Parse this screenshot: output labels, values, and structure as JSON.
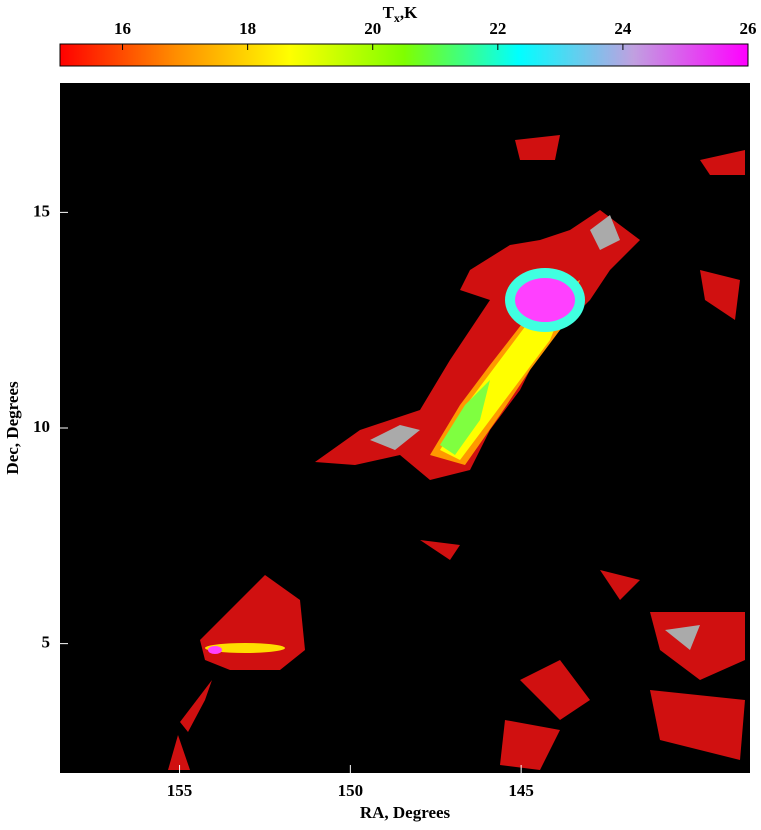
{
  "chart_data": {
    "type": "image",
    "x_label": "RA, Degrees",
    "y_label": "Dec, Degrees",
    "xlim": [
      158.5,
      138.3
    ],
    "ylim": [
      2.0,
      18.0
    ],
    "xticks": [
      155,
      150,
      145
    ],
    "yticks": [
      5,
      10,
      15
    ],
    "colorbar": {
      "label_base": "T",
      "label_sub": "x",
      "label_rest": ",K",
      "clim": [
        15,
        26
      ],
      "ticks": [
        16,
        18,
        20,
        22,
        24,
        26
      ],
      "colors": [
        "#ff0000",
        "#ff8c00",
        "#ffff00",
        "#7fff00",
        "#00ffff",
        "#c0a0e0",
        "#ff00ff"
      ]
    }
  }
}
